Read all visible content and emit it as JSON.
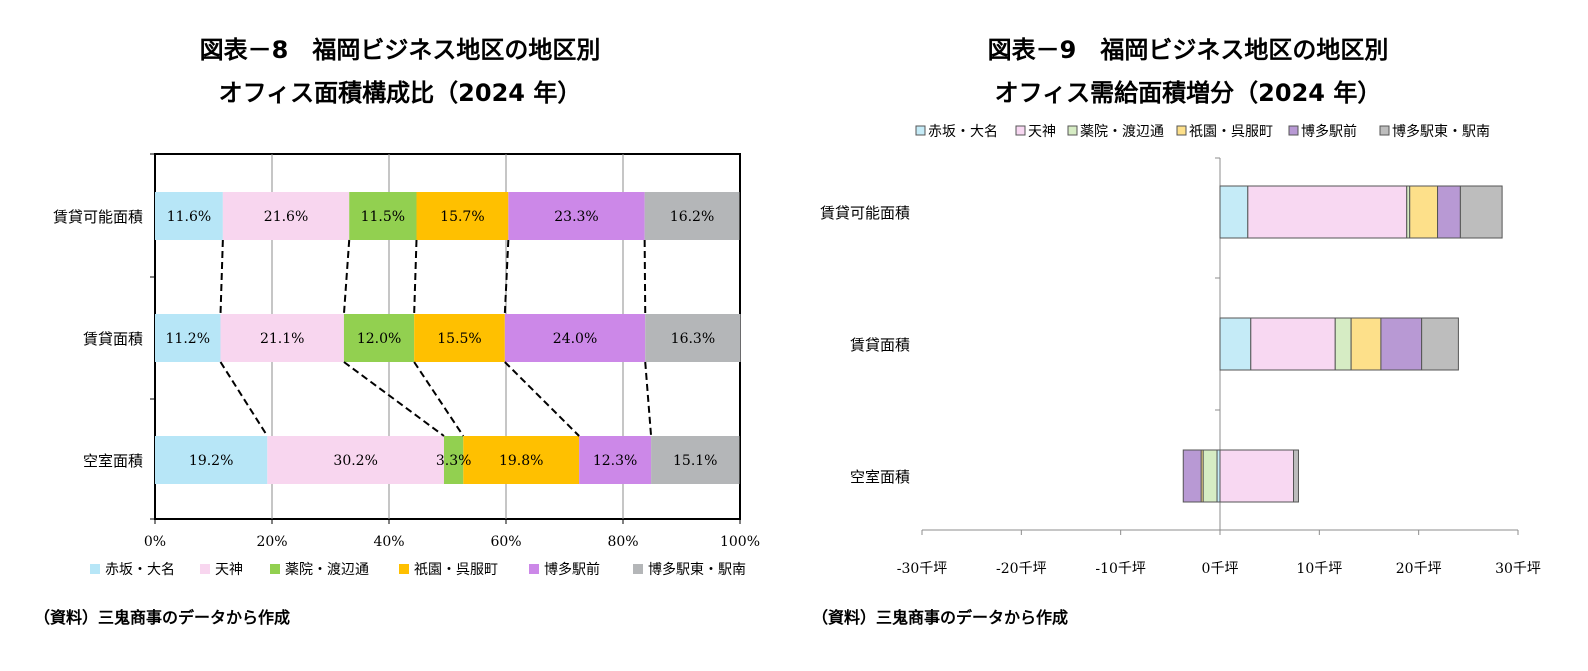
{
  "chart_data": [
    {
      "type": "bar",
      "orientation": "horizontal",
      "stacked": "percent",
      "title": "図表－8　福岡ビジネス地区の地区別",
      "subtitle": "オフィス面積構成比（2024 年）",
      "categories": [
        "賃貸可能面積",
        "賃貸面積",
        "空室面積"
      ],
      "series": [
        {
          "name": "赤坂・大名",
          "color": "#b7e6f7",
          "values": [
            11.6,
            11.2,
            19.2
          ]
        },
        {
          "name": "天神",
          "color": "#f8d6ef",
          "values": [
            21.6,
            21.1,
            30.2
          ]
        },
        {
          "name": "薬院・渡辺通",
          "color": "#92d050",
          "values": [
            11.5,
            12.0,
            3.3
          ]
        },
        {
          "name": "祇園・呉服町",
          "color": "#ffc000",
          "values": [
            15.7,
            15.5,
            19.8
          ]
        },
        {
          "name": "博多駅前",
          "color": "#cc88e8",
          "values": [
            23.3,
            24.0,
            12.3
          ]
        },
        {
          "name": "博多駅東・駅南",
          "color": "#b4b6b8",
          "values": [
            16.2,
            16.3,
            15.1
          ]
        }
      ],
      "data_labels": [
        [
          "11.6%",
          "21.6%",
          "11.5%",
          "15.7%",
          "23.3%",
          "16.2%"
        ],
        [
          "11.2%",
          "21.1%",
          "12.0%",
          "15.5%",
          "24.0%",
          "16.3%"
        ],
        [
          "19.2%",
          "30.2%",
          "3.3%",
          "19.8%",
          "12.3%",
          "15.1%"
        ]
      ],
      "xlim": [
        0,
        100
      ],
      "xticks": [
        "0%",
        "20%",
        "40%",
        "60%",
        "80%",
        "100%"
      ],
      "grid": true,
      "legend": "bottom",
      "source": "（資料）三鬼商事のデータから作成"
    },
    {
      "type": "bar",
      "orientation": "horizontal",
      "stacked": true,
      "title": "図表－9　福岡ビジネス地区の地区別",
      "subtitle": "オフィス需給面積増分（2024 年）",
      "categories": [
        "賃貸可能面積",
        "賃貸面積",
        "空室面積"
      ],
      "series": [
        {
          "name": "赤坂・大名",
          "color": "#c5ebf7",
          "values": [
            2.8,
            3.1,
            -0.3
          ]
        },
        {
          "name": "天神",
          "color": "#f8d8f2",
          "values": [
            16.0,
            8.5,
            7.4
          ]
        },
        {
          "name": "薬院・渡辺通",
          "color": "#d6ecc4",
          "values": [
            0.3,
            1.6,
            -1.4
          ]
        },
        {
          "name": "祇園・呉服町",
          "color": "#fde08a",
          "values": [
            2.8,
            3.0,
            -0.2
          ]
        },
        {
          "name": "博多駅前",
          "color": "#b899d4",
          "values": [
            2.3,
            4.1,
            -1.8
          ]
        },
        {
          "name": "博多駅東・駅南",
          "color": "#bdbdbd",
          "values": [
            4.2,
            3.7,
            0.5
          ]
        }
      ],
      "xlim": [
        -30,
        30
      ],
      "xticks": [
        "-30千坪",
        "-20千坪",
        "-10千坪",
        "0千坪",
        "10千坪",
        "20千坪",
        "30千坪"
      ],
      "grid": false,
      "legend": "top",
      "source": "（資料）三鬼商事のデータから作成"
    }
  ]
}
